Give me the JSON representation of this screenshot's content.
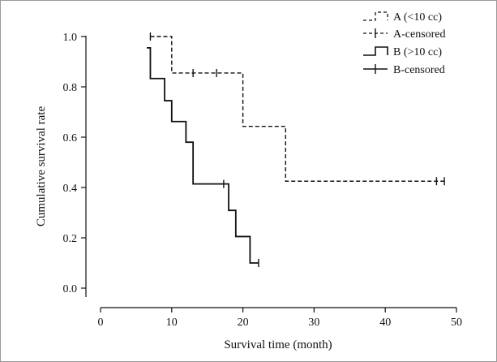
{
  "chart_data": {
    "type": "line",
    "subtype": "kaplan-meier step",
    "title": "",
    "xlabel": "Survival time (month)",
    "ylabel": "Cumulative survival rate",
    "xlim": [
      0,
      50
    ],
    "ylim": [
      0.0,
      1.0
    ],
    "xticks": [
      "0",
      "10",
      "20",
      "30",
      "40",
      "50"
    ],
    "yticks": [
      "0.0",
      "0.2",
      "0.4",
      "0.6",
      "0.8",
      "1.0"
    ],
    "grid": false,
    "legend_position": "top-right",
    "legend": [
      {
        "label": "A (<10 cc)",
        "style": "dashed-step"
      },
      {
        "label": "A-censored",
        "style": "dashed-censor"
      },
      {
        "label": "B (>10 cc)",
        "style": "solid-step"
      },
      {
        "label": "B-censored",
        "style": "solid-censor"
      }
    ],
    "series": [
      {
        "name": "A (<10 cc)",
        "line": "dashed",
        "color": "#111111",
        "steps": [
          {
            "x": 7,
            "y": 1.0
          },
          {
            "x": 10,
            "y": 0.855
          },
          {
            "x": 20,
            "y": 0.643
          },
          {
            "x": 26,
            "y": 0.425
          },
          {
            "x": 48.3,
            "y": 0.425
          }
        ],
        "censored": [
          {
            "x": 7,
            "y": 1.0
          },
          {
            "x": 13,
            "y": 0.855
          },
          {
            "x": 16.3,
            "y": 0.855
          },
          {
            "x": 47.2,
            "y": 0.425
          },
          {
            "x": 48.3,
            "y": 0.425
          }
        ]
      },
      {
        "name": "B (>10 cc)",
        "line": "solid",
        "color": "#111111",
        "steps": [
          {
            "x": 6.5,
            "y": 0.955
          },
          {
            "x": 7,
            "y": 0.833
          },
          {
            "x": 9,
            "y": 0.745
          },
          {
            "x": 10,
            "y": 0.662
          },
          {
            "x": 12,
            "y": 0.58
          },
          {
            "x": 13,
            "y": 0.414
          },
          {
            "x": 18,
            "y": 0.309
          },
          {
            "x": 19,
            "y": 0.205
          },
          {
            "x": 21,
            "y": 0.1
          },
          {
            "x": 22.2,
            "y": 0.1
          }
        ],
        "censored": [
          {
            "x": 17.3,
            "y": 0.414
          },
          {
            "x": 22.2,
            "y": 0.1
          }
        ]
      }
    ]
  }
}
